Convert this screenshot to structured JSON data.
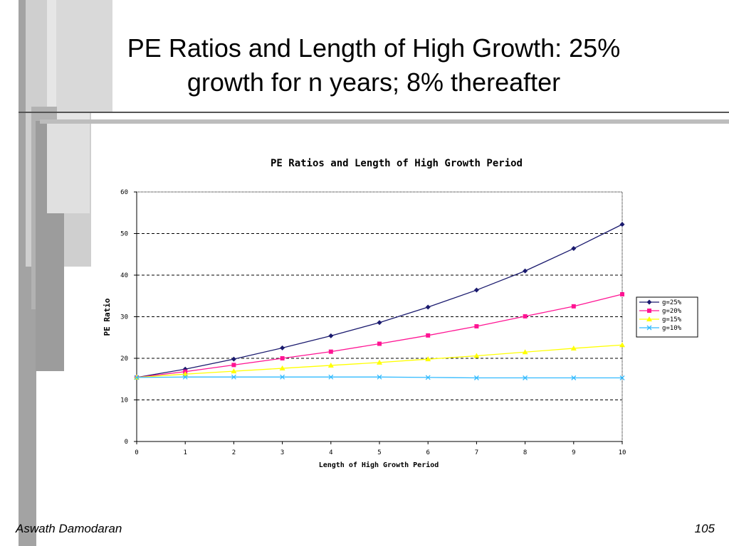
{
  "slide": {
    "title_line1": "PE Ratios and Length of High Growth: 25%",
    "title_line2": "growth for n years; 8% thereafter",
    "author": "Aswath Damodaran",
    "page_number": "105"
  },
  "colors": {
    "gray_bar_dark": "#9a9a9a",
    "gray_bar_mid": "#b9b9b9",
    "gray_bar_light": "#d4d4d4",
    "rule_dark": "#555555",
    "rule_light": "#bdbdbd"
  },
  "chart_data": {
    "type": "line",
    "title": "PE Ratios and Length of High Growth Period",
    "xlabel": "Length of High Growth Period",
    "ylabel": "PE Ratio",
    "x": [
      0,
      1,
      2,
      3,
      4,
      5,
      6,
      7,
      8,
      9,
      10
    ],
    "x_tick_labels": [
      "0",
      "1",
      "2",
      "3",
      "4",
      "5",
      "6",
      "7",
      "8",
      "9",
      "10"
    ],
    "ylim": [
      0,
      60
    ],
    "y_ticks": [
      0,
      10,
      20,
      30,
      40,
      50,
      60
    ],
    "y_tick_labels": [
      "0",
      "10",
      "20",
      "30",
      "40",
      "50",
      "60"
    ],
    "grid": "horizontal dashed",
    "legend_position": "right",
    "series": [
      {
        "name": "g=25%",
        "color": "#1a1a6e",
        "marker": "diamond",
        "values": [
          15.4,
          17.4,
          19.8,
          22.5,
          25.4,
          28.6,
          32.3,
          36.4,
          41.0,
          46.4,
          52.2
        ]
      },
      {
        "name": "g=20%",
        "color": "#ff1493",
        "marker": "square",
        "values": [
          15.4,
          16.8,
          18.4,
          20.0,
          21.6,
          23.5,
          25.5,
          27.7,
          30.1,
          32.5,
          35.4
        ]
      },
      {
        "name": "g=15%",
        "color": "#ffff00",
        "marker": "triangle",
        "values": [
          15.4,
          16.2,
          16.9,
          17.6,
          18.3,
          19.0,
          19.8,
          20.6,
          21.5,
          22.4,
          23.2
        ]
      },
      {
        "name": "g=10%",
        "color": "#33bbff",
        "marker": "x",
        "values": [
          15.4,
          15.5,
          15.5,
          15.5,
          15.5,
          15.5,
          15.4,
          15.3,
          15.3,
          15.3,
          15.3
        ]
      }
    ]
  }
}
